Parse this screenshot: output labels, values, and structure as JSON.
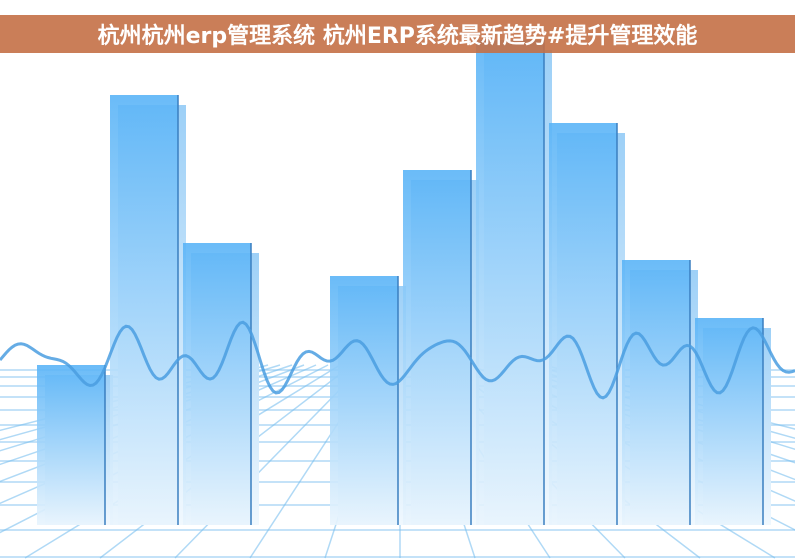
{
  "banner": {
    "title": "杭州杭州erp管理系统 杭州ERP系统最新趋势#提升管理效能",
    "color": "#c97b55"
  },
  "illustration": {
    "subject": "bar-chart-illustration",
    "bar_color": "#5ab4f7",
    "wave_color": "#4a9ee0",
    "grid_color": "#7cc0f0"
  }
}
